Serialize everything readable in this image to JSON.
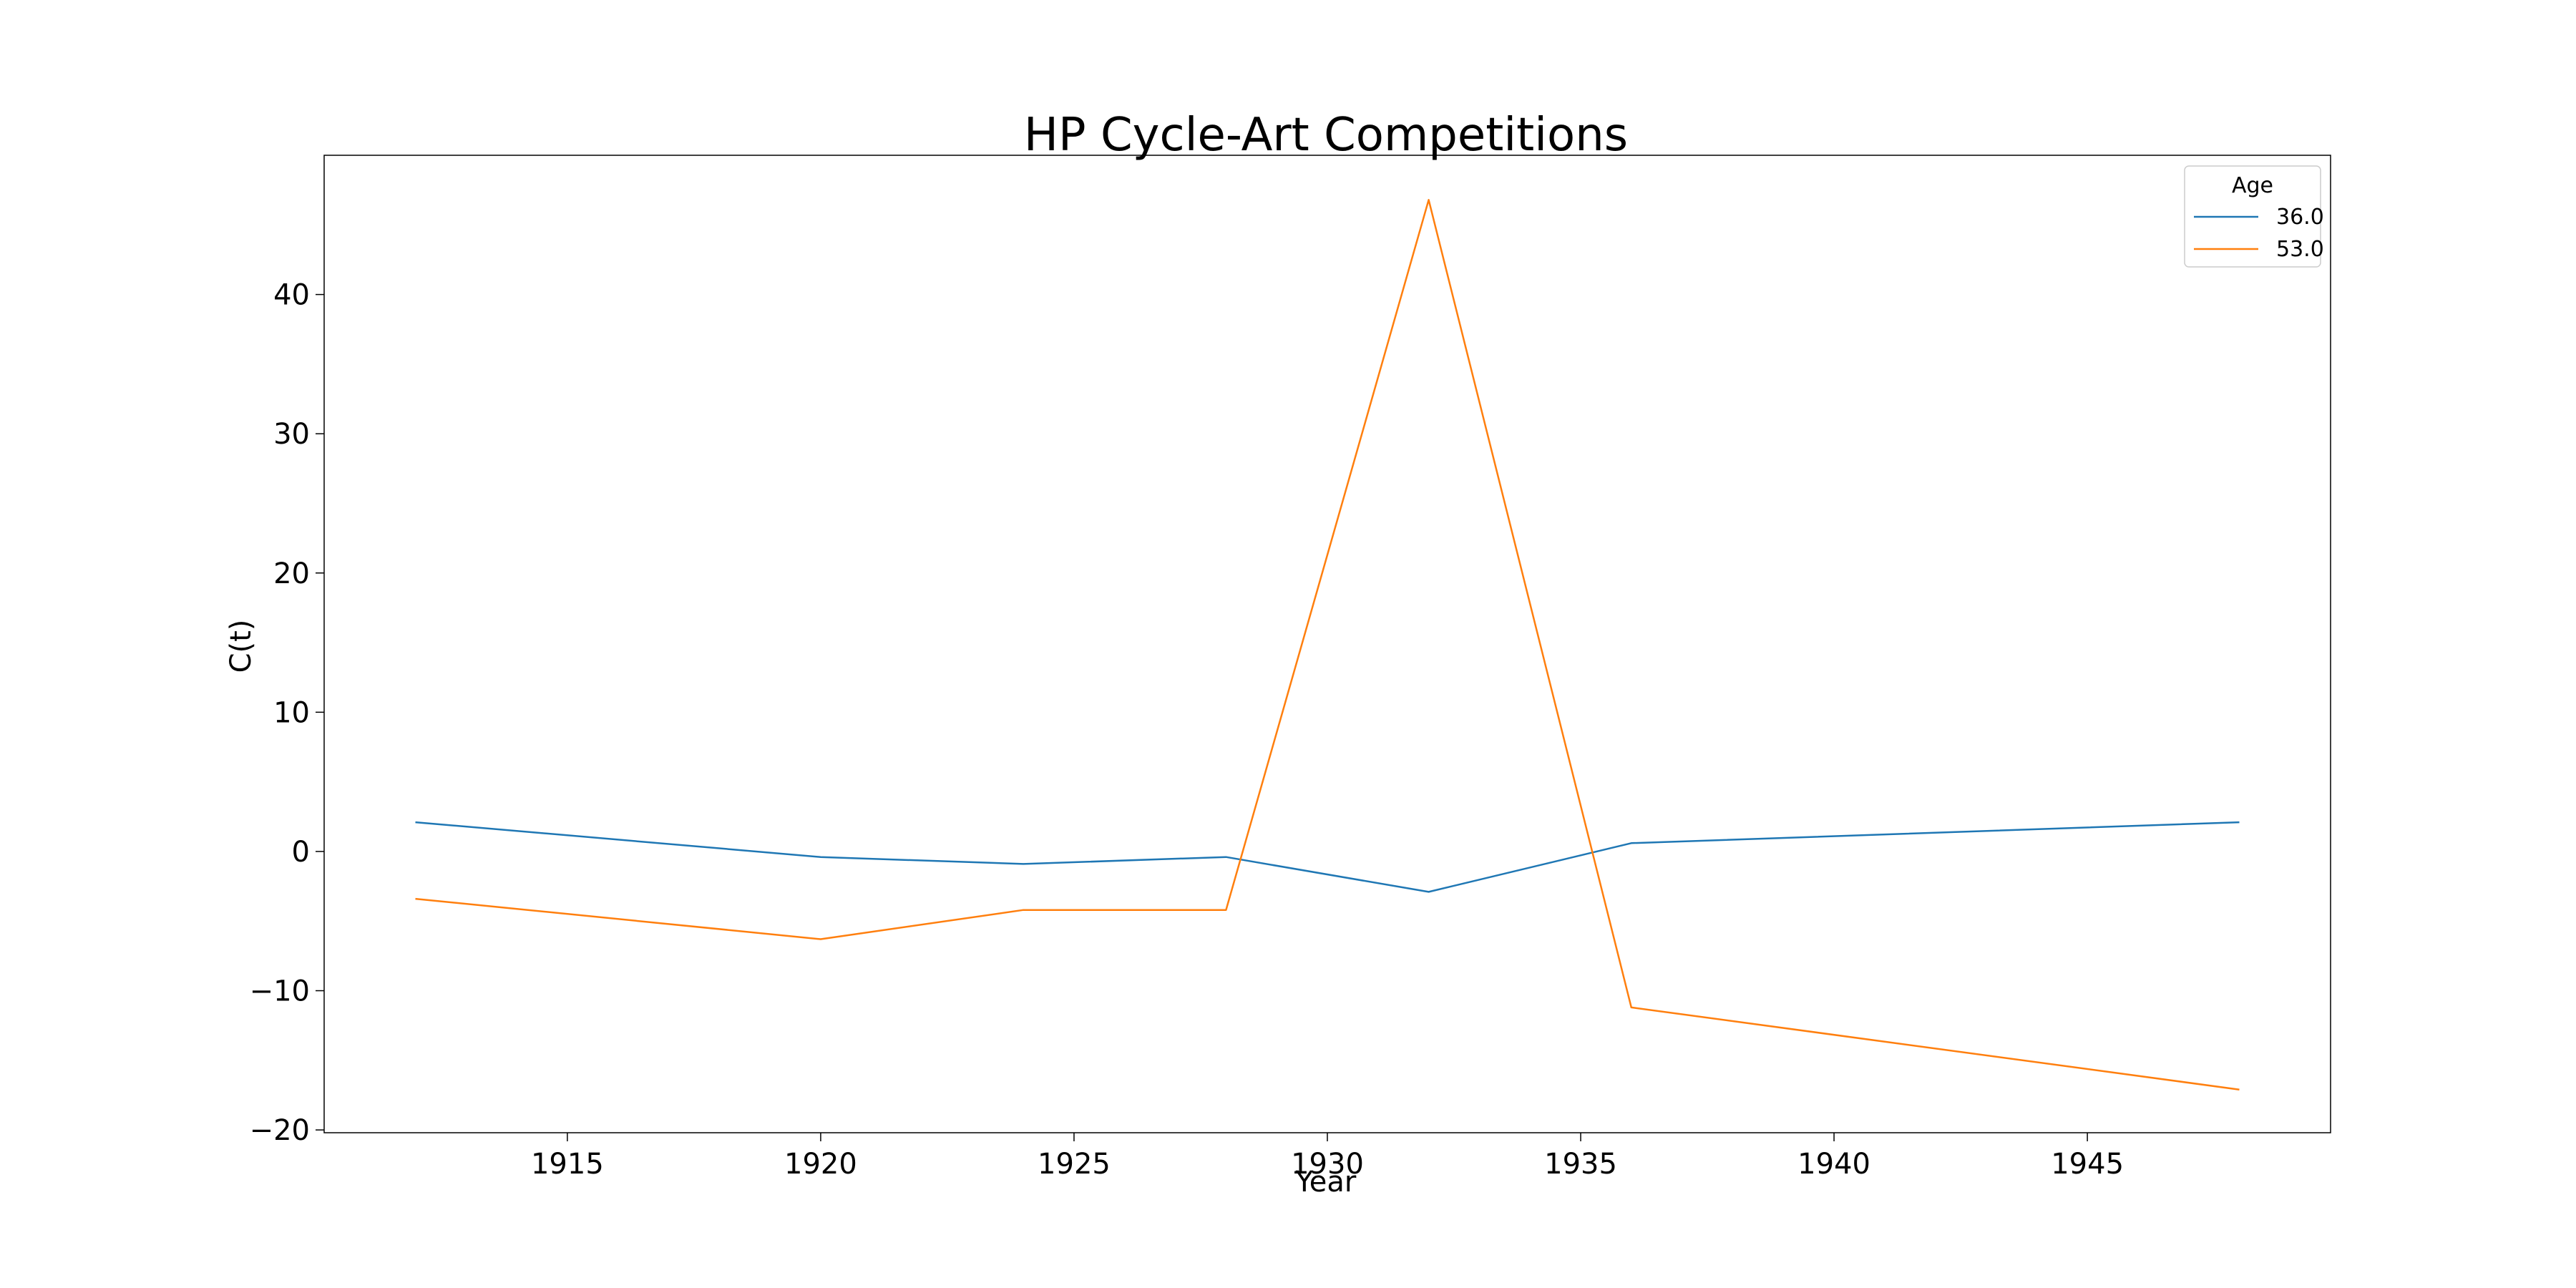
{
  "chart_data": {
    "type": "line",
    "title": "HP Cycle-Art Competitions",
    "xlabel": "Year",
    "ylabel": "C(t)",
    "x": [
      1912,
      1920,
      1924,
      1928,
      1932,
      1936,
      1948
    ],
    "xlim": [
      1910.2,
      1949.8
    ],
    "ylim": [
      -20.2,
      50.0
    ],
    "xticks": [
      1915,
      1920,
      1925,
      1930,
      1935,
      1940,
      1945
    ],
    "yticks": [
      -20,
      -10,
      0,
      10,
      20,
      30,
      40
    ],
    "grid": false,
    "legend": {
      "title": "Age",
      "placement": "top-right"
    },
    "series": [
      {
        "name": "36.0",
        "color": "#1f77b4",
        "values": [
          2.1,
          -0.4,
          -0.9,
          -0.4,
          -2.9,
          0.6,
          2.1
        ]
      },
      {
        "name": "53.0",
        "color": "#ff7f0e",
        "values": [
          -3.4,
          -6.3,
          -4.2,
          -4.2,
          46.8,
          -11.2,
          -17.1
        ]
      }
    ]
  }
}
